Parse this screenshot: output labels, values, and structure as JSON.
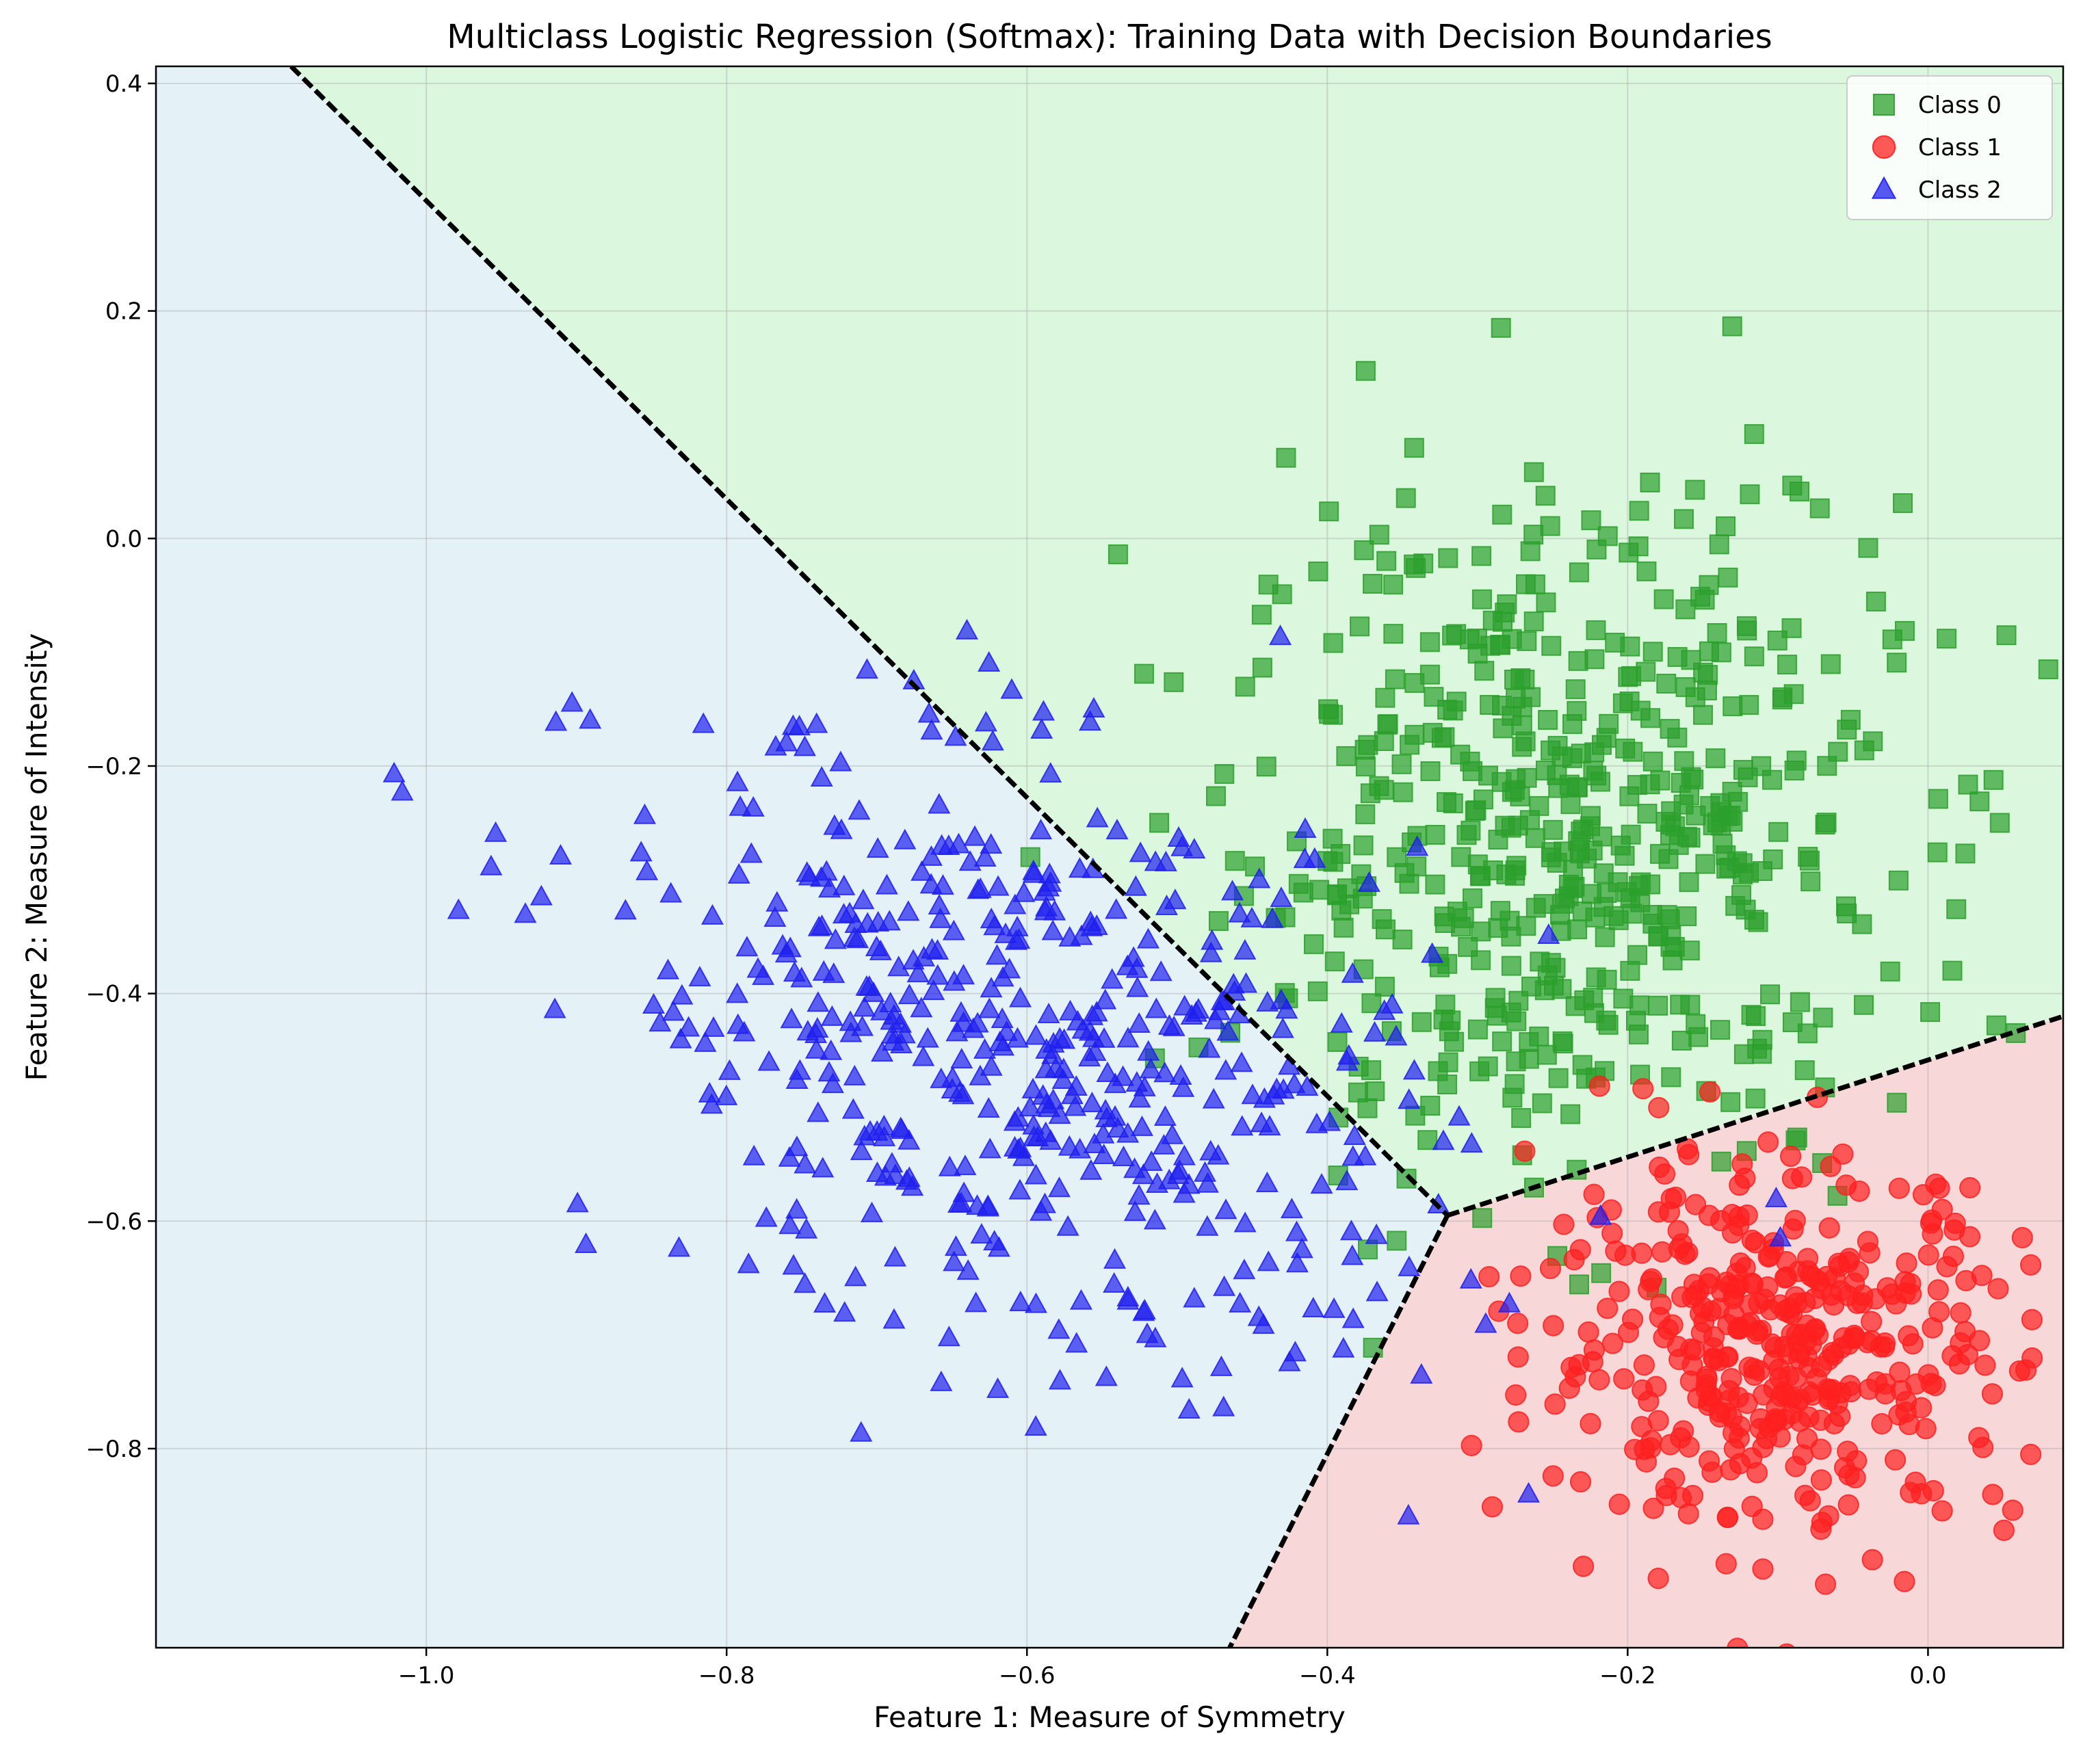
{
  "chart_data": {
    "type": "scatter",
    "title": "Multiclass Logistic Regression (Softmax): Training Data with Decision Boundaries",
    "xlabel": "Feature 1: Measure of Symmetry",
    "ylabel": "Feature 2: Measure of Intensity",
    "xlim": [
      -1.18,
      0.09
    ],
    "ylim": [
      -0.975,
      0.415
    ],
    "x_ticks": [
      -1.0,
      -0.8,
      -0.6,
      -0.4,
      -0.2,
      0.0
    ],
    "x_tick_labels": [
      "−1.0",
      "−0.8",
      "−0.6",
      "−0.4",
      "−0.2",
      "0.0"
    ],
    "y_ticks": [
      -0.8,
      -0.6,
      -0.4,
      -0.2,
      0.0,
      0.2,
      0.4
    ],
    "y_tick_labels": [
      "−0.8",
      "−0.6",
      "−0.4",
      "−0.2",
      "0.0",
      "0.2",
      "0.4"
    ],
    "grid": true,
    "legend_position": "top-right",
    "series": [
      {
        "name": "Class 0",
        "marker": "square",
        "color": "#2ca02c",
        "region_color": "#dbf7dd",
        "center": [
          -0.24,
          -0.26
        ],
        "spread": [
          0.11,
          0.15
        ],
        "count": 560
      },
      {
        "name": "Class 1",
        "marker": "circle",
        "color": "#ff2020",
        "region_color": "#f8d7d9",
        "center": [
          -0.1,
          -0.71
        ],
        "spread": [
          0.08,
          0.08
        ],
        "count": 420
      },
      {
        "name": "Class 2",
        "marker": "triangle",
        "color": "#2020ee",
        "region_color": "#e4f2f7",
        "center": [
          -0.6,
          -0.46
        ],
        "spread": [
          0.14,
          0.13
        ],
        "count": 520
      }
    ],
    "decision_boundary": {
      "style": "dashed",
      "color": "#000000",
      "junction": [
        -0.32,
        -0.595
      ],
      "segments": [
        {
          "between": [
            "Class 0",
            "Class 2"
          ],
          "from": [
            -1.09,
            0.415
          ],
          "to": [
            -0.32,
            -0.595
          ]
        },
        {
          "between": [
            "Class 0",
            "Class 1"
          ],
          "from": [
            -0.32,
            -0.595
          ],
          "to": [
            0.09,
            -0.42
          ]
        },
        {
          "between": [
            "Class 1",
            "Class 2"
          ],
          "from": [
            -0.32,
            -0.595
          ],
          "to": [
            -0.465,
            -0.975
          ]
        }
      ]
    }
  }
}
